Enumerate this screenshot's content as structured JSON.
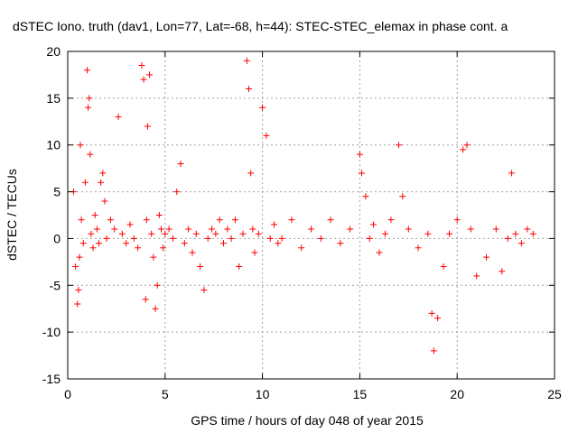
{
  "chart_data": {
    "type": "scatter",
    "title": "dSTEC Iono. truth (dav1, Lon=77, Lat=-68, h=44): STEC-STEC_elemax in phase cont. a",
    "xlabel": "GPS time / hours of day 048 of year 2015",
    "ylabel": "dSTEC  / TECUs",
    "xlim": [
      0,
      25
    ],
    "ylim": [
      -15,
      20
    ],
    "xticks": [
      0,
      5,
      10,
      15,
      20,
      25
    ],
    "yticks": [
      -15,
      -10,
      -5,
      0,
      5,
      10,
      15,
      20
    ],
    "xtick_labels": [
      "0",
      "5",
      "10",
      "15",
      "20",
      "25"
    ],
    "ytick_labels": [
      "-15",
      "-10",
      "-5",
      "0",
      "5",
      "10",
      "15",
      "20"
    ],
    "grid": true,
    "marker": "+",
    "color": "#ff0000",
    "series": [
      {
        "x": [
          0.3,
          0.4,
          0.5,
          0.55,
          0.6,
          0.65,
          0.7,
          0.8,
          0.9,
          1.0,
          1.05,
          1.1,
          1.15,
          1.2,
          1.3,
          1.4,
          1.5,
          1.6,
          1.7,
          1.8,
          1.9,
          2.0,
          2.2,
          2.4,
          2.6,
          2.8,
          3.0,
          3.2,
          3.4,
          3.6,
          3.8,
          3.9,
          4.0,
          4.05,
          4.1,
          4.2,
          4.3,
          4.4,
          4.5,
          4.6,
          4.7,
          4.8,
          4.9,
          5.0,
          5.2,
          5.4,
          5.6,
          5.8,
          6.0,
          6.2,
          6.4,
          6.6,
          6.8,
          7.0,
          7.2,
          7.4,
          7.6,
          7.8,
          8.0,
          8.2,
          8.4,
          8.6,
          8.8,
          9.0,
          9.2,
          9.3,
          9.4,
          9.5,
          9.6,
          9.8,
          10.0,
          10.2,
          10.4,
          10.6,
          10.8,
          11.0,
          11.5,
          12.0,
          12.5,
          13.0,
          13.5,
          14.0,
          14.5,
          15.0,
          15.1,
          15.3,
          15.5,
          15.7,
          16.0,
          16.3,
          16.6,
          17.0,
          17.2,
          17.5,
          18.0,
          18.5,
          18.7,
          18.8,
          19.0,
          19.3,
          19.6,
          20.0,
          20.3,
          20.5,
          20.7,
          21.0,
          21.5,
          22.0,
          22.3,
          22.6,
          22.8,
          23.0,
          23.3,
          23.6,
          23.9
        ],
        "y": [
          5.0,
          -3.0,
          -7.0,
          -5.5,
          -2.0,
          10.0,
          2.0,
          -0.5,
          6.0,
          18.0,
          14.0,
          15.0,
          9.0,
          0.5,
          -1.0,
          2.5,
          1.0,
          -0.5,
          6.0,
          7.0,
          4.0,
          0.0,
          2.0,
          1.0,
          13.0,
          0.5,
          -0.5,
          1.5,
          0.0,
          -1.0,
          18.5,
          17.0,
          -6.5,
          2.0,
          12.0,
          17.5,
          0.5,
          -2.0,
          -7.5,
          -5.0,
          2.5,
          1.0,
          -1.0,
          0.5,
          1.0,
          0.0,
          5.0,
          8.0,
          -0.5,
          1.0,
          -1.5,
          0.5,
          -3.0,
          -5.5,
          0.0,
          1.0,
          0.5,
          2.0,
          -0.5,
          1.0,
          0.0,
          2.0,
          -3.0,
          0.5,
          19.0,
          16.0,
          7.0,
          1.0,
          -1.5,
          0.5,
          14.0,
          11.0,
          0.0,
          1.5,
          -0.5,
          0.0,
          2.0,
          -1.0,
          1.0,
          0.0,
          2.0,
          -0.5,
          1.0,
          9.0,
          7.0,
          4.5,
          0.0,
          1.5,
          -1.5,
          0.5,
          2.0,
          10.0,
          4.5,
          1.0,
          -1.0,
          0.5,
          -8.0,
          -12.0,
          -8.5,
          -3.0,
          0.5,
          2.0,
          9.5,
          10.0,
          1.0,
          -4.0,
          -2.0,
          1.0,
          -3.5,
          0.0,
          7.0,
          0.5,
          -0.5,
          1.0,
          0.5
        ]
      }
    ]
  }
}
